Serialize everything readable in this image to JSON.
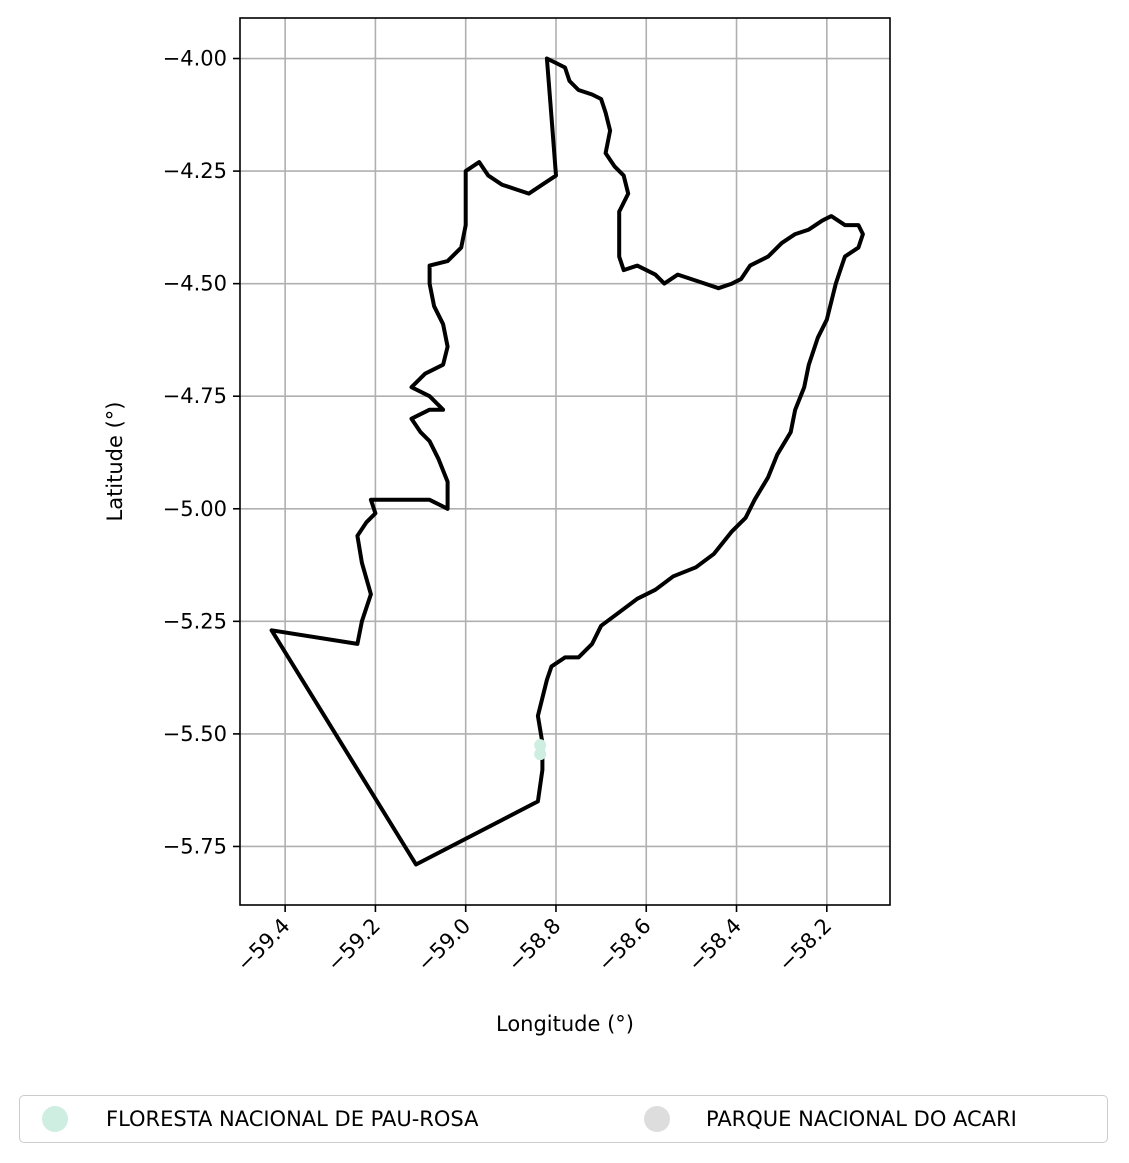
{
  "chart_data": {
    "type": "map",
    "xlabel": "Longitude (°)",
    "ylabel": "Latitude (°)",
    "xlim": [
      -59.5,
      -58.06
    ],
    "ylim": [
      -5.88,
      -3.91
    ],
    "xticks": [
      -59.4,
      -59.2,
      -59.0,
      -58.8,
      -58.6,
      -58.4,
      -58.2
    ],
    "xtick_labels": [
      "−59.4",
      "−59.2",
      "−59.0",
      "−58.8",
      "−58.6",
      "−58.4",
      "−58.2"
    ],
    "yticks": [
      -4.0,
      -4.25,
      -4.5,
      -4.75,
      -5.0,
      -5.25,
      -5.5,
      -5.75
    ],
    "ytick_labels": [
      "−4.00",
      "−4.25",
      "−4.50",
      "−4.75",
      "−5.00",
      "−5.25",
      "−5.50",
      "−5.75"
    ],
    "grid": true,
    "legend_position": "bottom-center",
    "series": [
      {
        "name": "FLORESTA NACIONAL DE PAU-ROSA",
        "color": "#cdeee0",
        "points": [
          [
            -58.835,
            -5.525
          ],
          [
            -58.835,
            -5.545
          ]
        ]
      },
      {
        "name": "PARQUE NACIONAL DO ACARI",
        "color": "#dddddd",
        "points": []
      }
    ],
    "boundary": {
      "color": "#000000",
      "coords": [
        [
          -58.82,
          -4.0
        ],
        [
          -58.8,
          -4.01
        ],
        [
          -58.78,
          -4.02
        ],
        [
          -58.77,
          -4.05
        ],
        [
          -58.75,
          -4.07
        ],
        [
          -58.72,
          -4.08
        ],
        [
          -58.7,
          -4.09
        ],
        [
          -58.69,
          -4.12
        ],
        [
          -58.68,
          -4.16
        ],
        [
          -58.69,
          -4.21
        ],
        [
          -58.67,
          -4.24
        ],
        [
          -58.65,
          -4.26
        ],
        [
          -58.64,
          -4.3
        ],
        [
          -58.66,
          -4.34
        ],
        [
          -58.66,
          -4.39
        ],
        [
          -58.66,
          -4.44
        ],
        [
          -58.65,
          -4.47
        ],
        [
          -58.62,
          -4.46
        ],
        [
          -58.58,
          -4.48
        ],
        [
          -58.56,
          -4.5
        ],
        [
          -58.53,
          -4.48
        ],
        [
          -58.5,
          -4.49
        ],
        [
          -58.47,
          -4.5
        ],
        [
          -58.44,
          -4.51
        ],
        [
          -58.41,
          -4.5
        ],
        [
          -58.39,
          -4.49
        ],
        [
          -58.37,
          -4.46
        ],
        [
          -58.33,
          -4.44
        ],
        [
          -58.3,
          -4.41
        ],
        [
          -58.27,
          -4.39
        ],
        [
          -58.24,
          -4.38
        ],
        [
          -58.21,
          -4.36
        ],
        [
          -58.19,
          -4.35
        ],
        [
          -58.16,
          -4.37
        ],
        [
          -58.13,
          -4.37
        ],
        [
          -58.12,
          -4.39
        ],
        [
          -58.13,
          -4.42
        ],
        [
          -58.16,
          -4.44
        ],
        [
          -58.17,
          -4.47
        ],
        [
          -58.18,
          -4.5
        ],
        [
          -58.19,
          -4.54
        ],
        [
          -58.2,
          -4.58
        ],
        [
          -58.22,
          -4.62
        ],
        [
          -58.24,
          -4.68
        ],
        [
          -58.25,
          -4.73
        ],
        [
          -58.27,
          -4.78
        ],
        [
          -58.28,
          -4.83
        ],
        [
          -58.31,
          -4.88
        ],
        [
          -58.33,
          -4.93
        ],
        [
          -58.36,
          -4.98
        ],
        [
          -58.38,
          -5.02
        ],
        [
          -58.41,
          -5.05
        ],
        [
          -58.45,
          -5.1
        ],
        [
          -58.49,
          -5.13
        ],
        [
          -58.54,
          -5.15
        ],
        [
          -58.58,
          -5.18
        ],
        [
          -58.62,
          -5.2
        ],
        [
          -58.66,
          -5.23
        ],
        [
          -58.7,
          -5.26
        ],
        [
          -58.72,
          -5.3
        ],
        [
          -58.75,
          -5.33
        ],
        [
          -58.78,
          -5.33
        ],
        [
          -58.81,
          -5.35
        ],
        [
          -58.82,
          -5.38
        ],
        [
          -58.83,
          -5.42
        ],
        [
          -58.84,
          -5.46
        ],
        [
          -58.83,
          -5.52
        ],
        [
          -58.83,
          -5.58
        ],
        [
          -58.84,
          -5.65
        ],
        [
          -59.11,
          -5.79
        ],
        [
          -59.43,
          -5.27
        ],
        [
          -59.24,
          -5.3
        ],
        [
          -59.23,
          -5.25
        ],
        [
          -59.21,
          -5.19
        ],
        [
          -59.23,
          -5.12
        ],
        [
          -59.24,
          -5.06
        ],
        [
          -59.22,
          -5.03
        ],
        [
          -59.2,
          -5.01
        ],
        [
          -59.21,
          -4.98
        ],
        [
          -59.17,
          -4.98
        ],
        [
          -59.13,
          -4.98
        ],
        [
          -59.08,
          -4.98
        ],
        [
          -59.04,
          -5.0
        ],
        [
          -59.04,
          -4.94
        ],
        [
          -59.06,
          -4.89
        ],
        [
          -59.08,
          -4.85
        ],
        [
          -59.1,
          -4.83
        ],
        [
          -59.12,
          -4.8
        ],
        [
          -59.08,
          -4.78
        ],
        [
          -59.05,
          -4.78
        ],
        [
          -59.08,
          -4.75
        ],
        [
          -59.12,
          -4.73
        ],
        [
          -59.09,
          -4.7
        ],
        [
          -59.05,
          -4.68
        ],
        [
          -59.04,
          -4.64
        ],
        [
          -59.05,
          -4.59
        ],
        [
          -59.07,
          -4.55
        ],
        [
          -59.08,
          -4.5
        ],
        [
          -59.08,
          -4.46
        ],
        [
          -59.04,
          -4.45
        ],
        [
          -59.01,
          -4.42
        ],
        [
          -59.0,
          -4.37
        ],
        [
          -59.0,
          -4.32
        ],
        [
          -59.0,
          -4.25
        ],
        [
          -58.97,
          -4.23
        ],
        [
          -58.95,
          -4.26
        ],
        [
          -58.92,
          -4.28
        ],
        [
          -58.89,
          -4.29
        ],
        [
          -58.86,
          -4.3
        ],
        [
          -58.83,
          -4.28
        ],
        [
          -58.8,
          -4.26
        ],
        [
          -58.81,
          -4.13
        ],
        [
          -58.82,
          -4.0
        ]
      ]
    }
  }
}
